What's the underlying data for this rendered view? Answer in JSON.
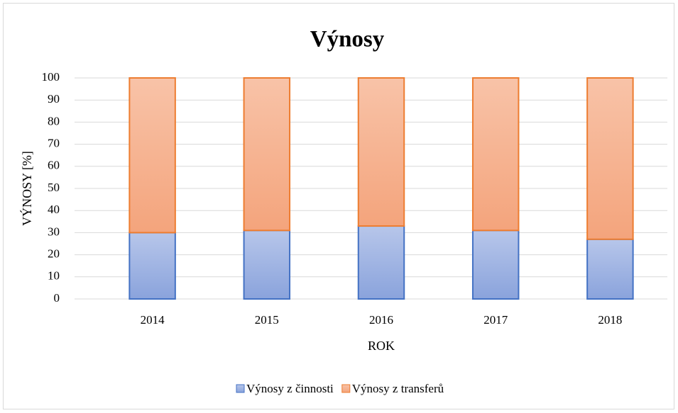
{
  "chart_data": {
    "type": "stacked_bar",
    "title": "Výnosy",
    "x_label": "ROK",
    "y_label": "VÝNOSY [%]",
    "categories": [
      "2014",
      "2015",
      "2016",
      "2017",
      "2018"
    ],
    "series": [
      {
        "name": "Výnosy z činnosti",
        "color": "#4472c4",
        "values": [
          30,
          31,
          33,
          31,
          27
        ]
      },
      {
        "name": "Výnosy z transferů",
        "color": "#ed7d31",
        "values": [
          70,
          69,
          67,
          69,
          73
        ]
      }
    ],
    "ylim": [
      0,
      100
    ],
    "yticks": [
      0,
      10,
      20,
      30,
      40,
      50,
      60,
      70,
      80,
      90,
      100
    ],
    "grid": true,
    "legend": "bottom"
  }
}
